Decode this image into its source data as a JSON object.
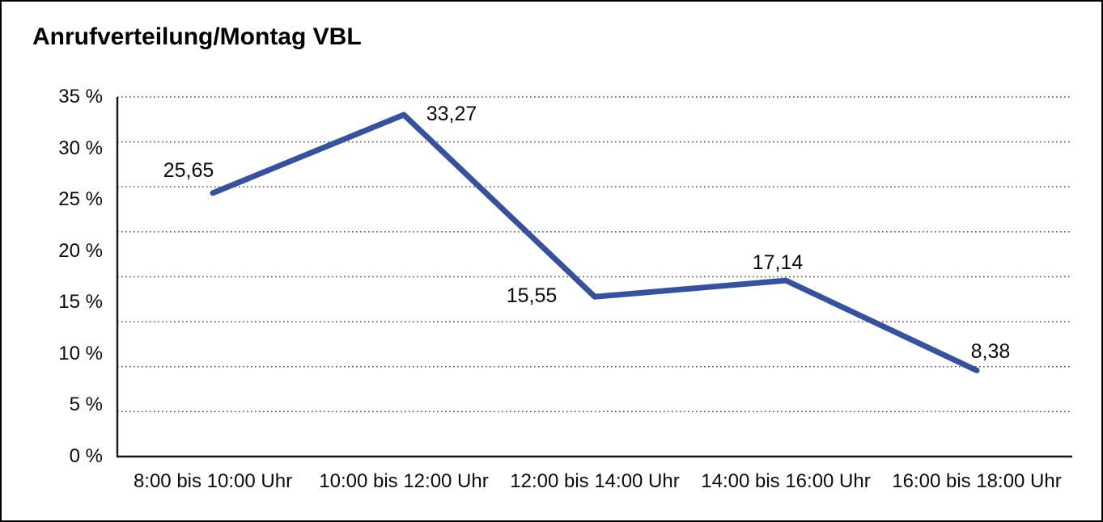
{
  "chart_data": {
    "type": "line",
    "title": "Anrufverteilung/Montag VBL",
    "categories": [
      "8:00 bis 10:00 Uhr",
      "10:00 bis 12:00 Uhr",
      "12:00 bis 14:00 Uhr",
      "14:00 bis 16:00 Uhr",
      "16:00 bis 18:00 Uhr"
    ],
    "values": [
      25.65,
      33.27,
      15.55,
      17.14,
      8.38
    ],
    "value_labels": [
      "25,65",
      "33,27",
      "15,55",
      "17,14",
      "8,38"
    ],
    "xlabel": "",
    "ylabel": "",
    "ylim": [
      0,
      35
    ],
    "ytick_step": 5,
    "ytick_suffix": " %",
    "ytick_labels": [
      "0 %",
      "5 %",
      "10 %",
      "15 %",
      "20 %",
      "25 %",
      "30 %",
      "35 %"
    ],
    "grid_divisions": 8,
    "grid_style": "dotted-horizontal",
    "legend": "none",
    "line_color": "#34529f",
    "axis_color": "#141414",
    "gridline_color": "#4a4a4a",
    "text_color": "#0b0b0b",
    "background_color": "#ffffff"
  }
}
